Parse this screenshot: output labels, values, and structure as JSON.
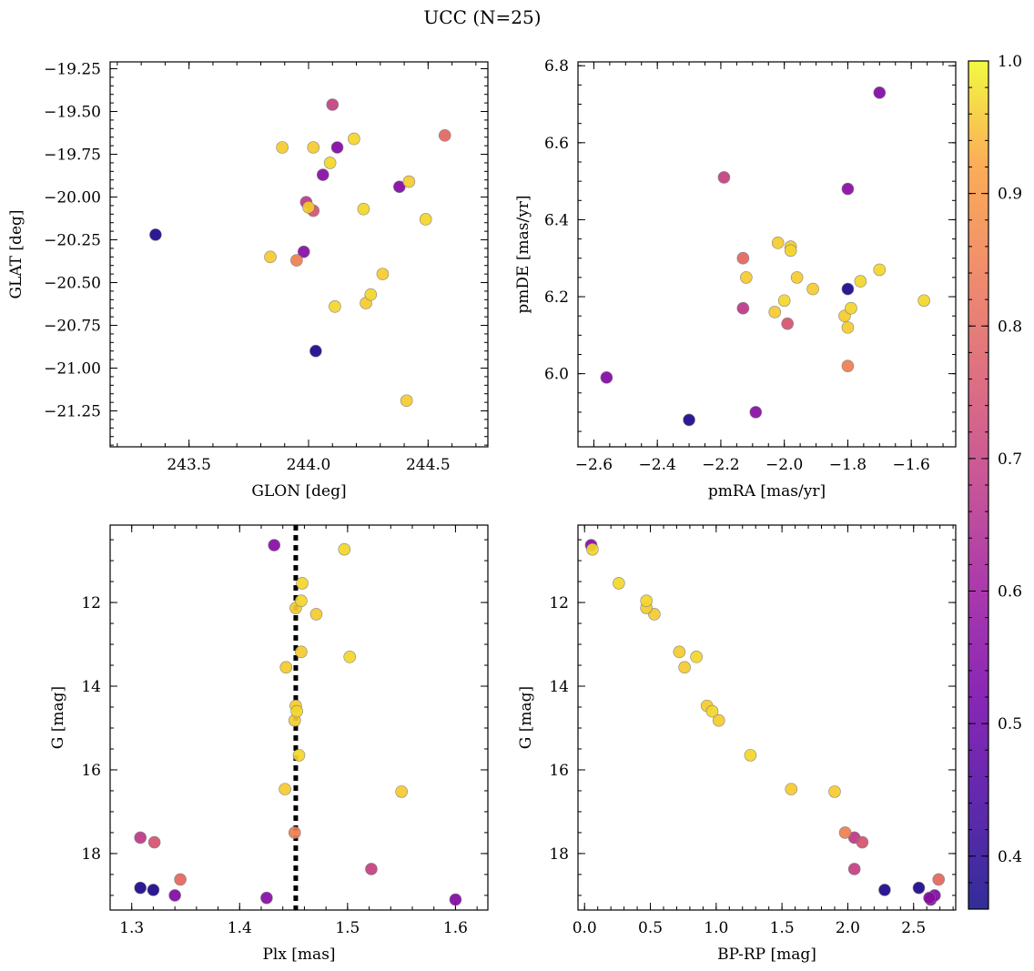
{
  "figure": {
    "title": "UCC (N=25)"
  },
  "colorbar": {
    "colormap": "plasma",
    "range": [
      0.36,
      1.0
    ],
    "ticks": [
      0.4,
      0.5,
      0.6,
      0.7,
      0.8,
      0.9,
      1.0
    ],
    "tick_labels": [
      "0.4",
      "0.5",
      "0.6",
      "0.7",
      "0.8",
      "0.9",
      "1.0"
    ]
  },
  "stars": [
    {
      "glon": 244.1,
      "glat": -19.46,
      "pmra": -2.19,
      "pmde": 6.51,
      "plx": 1.522,
      "g": 18.37,
      "bprp": 2.05,
      "prob": 0.7
    },
    {
      "glon": 244.57,
      "glat": -19.64,
      "pmra": -2.13,
      "pmde": 6.3,
      "plx": 1.345,
      "g": 18.62,
      "bprp": 2.69,
      "prob": 0.8
    },
    {
      "glon": 244.02,
      "glat": -19.71,
      "pmra": -2.12,
      "pmde": 6.25,
      "plx": 1.471,
      "g": 12.28,
      "bprp": 0.53,
      "prob": 0.96
    },
    {
      "glon": 243.89,
      "glat": -19.71,
      "pmra": -2.02,
      "pmde": 6.34,
      "plx": 1.452,
      "g": 12.13,
      "bprp": 0.47,
      "prob": 0.96
    },
    {
      "glon": 244.12,
      "glat": -19.71,
      "pmra": -1.7,
      "pmde": 6.73,
      "plx": 1.6,
      "g": 19.1,
      "bprp": 2.63,
      "prob": 0.55
    },
    {
      "glon": 244.19,
      "glat": -19.66,
      "pmra": -1.98,
      "pmde": 6.32,
      "plx": 1.453,
      "g": 14.6,
      "bprp": 0.97,
      "prob": 0.97
    },
    {
      "glon": 244.09,
      "glat": -19.8,
      "pmra": -2.0,
      "pmde": 6.19,
      "plx": 1.458,
      "g": 11.54,
      "bprp": 0.26,
      "prob": 0.97
    },
    {
      "glon": 244.06,
      "glat": -19.87,
      "pmra": -1.8,
      "pmde": 6.48,
      "plx": 1.425,
      "g": 19.06,
      "bprp": 2.62,
      "prob": 0.56
    },
    {
      "glon": 244.38,
      "glat": -19.94,
      "pmra": -2.56,
      "pmde": 5.99,
      "plx": 1.34,
      "g": 19.0,
      "bprp": 2.66,
      "prob": 0.55
    },
    {
      "glon": 244.42,
      "glat": -19.91,
      "pmra": -1.96,
      "pmde": 6.25,
      "plx": 1.457,
      "g": 13.18,
      "bprp": 0.72,
      "prob": 0.96
    },
    {
      "glon": 243.99,
      "glat": -20.03,
      "pmra": -2.13,
      "pmde": 6.17,
      "plx": 1.308,
      "g": 17.62,
      "bprp": 2.05,
      "prob": 0.68
    },
    {
      "glon": 244.02,
      "glat": -20.08,
      "pmra": -1.99,
      "pmde": 6.13,
      "plx": 1.321,
      "g": 17.73,
      "bprp": 2.11,
      "prob": 0.75
    },
    {
      "glon": 244.0,
      "glat": -20.06,
      "pmra": -2.03,
      "pmde": 6.16,
      "plx": 1.452,
      "g": 14.47,
      "bprp": 0.93,
      "prob": 0.96
    },
    {
      "glon": 244.23,
      "glat": -20.07,
      "pmra": -1.79,
      "pmde": 6.17,
      "plx": 1.455,
      "g": 15.65,
      "bprp": 1.26,
      "prob": 0.97
    },
    {
      "glon": 244.49,
      "glat": -20.13,
      "pmra": -1.76,
      "pmde": 6.24,
      "plx": 1.457,
      "g": 11.96,
      "bprp": 0.47,
      "prob": 0.97
    },
    {
      "glon": 243.36,
      "glat": -20.22,
      "pmra": -2.3,
      "pmde": 5.88,
      "plx": 1.308,
      "g": 18.82,
      "bprp": 2.54,
      "prob": 0.38
    },
    {
      "glon": 243.98,
      "glat": -20.32,
      "pmra": -2.09,
      "pmde": 5.9,
      "plx": 1.432,
      "g": 10.63,
      "bprp": 0.05,
      "prob": 0.56
    },
    {
      "glon": 243.84,
      "glat": -20.35,
      "pmra": -1.81,
      "pmde": 6.15,
      "plx": 1.442,
      "g": 16.46,
      "bprp": 1.57,
      "prob": 0.96
    },
    {
      "glon": 243.95,
      "glat": -20.37,
      "pmra": -1.8,
      "pmde": 6.02,
      "plx": 1.451,
      "g": 17.5,
      "bprp": 1.98,
      "prob": 0.85
    },
    {
      "glon": 244.31,
      "glat": -20.45,
      "pmra": -1.91,
      "pmde": 6.22,
      "plx": 1.55,
      "g": 16.52,
      "bprp": 1.9,
      "prob": 0.96
    },
    {
      "glon": 244.26,
      "glat": -20.57,
      "pmra": -1.7,
      "pmde": 6.27,
      "plx": 1.502,
      "g": 13.3,
      "bprp": 0.85,
      "prob": 0.97
    },
    {
      "glon": 244.11,
      "glat": -20.64,
      "pmra": -1.56,
      "pmde": 6.19,
      "plx": 1.497,
      "g": 10.73,
      "bprp": 0.06,
      "prob": 0.97
    },
    {
      "glon": 244.24,
      "glat": -20.62,
      "pmra": -1.8,
      "pmde": 6.12,
      "plx": 1.443,
      "g": 13.55,
      "bprp": 0.76,
      "prob": 0.96
    },
    {
      "glon": 244.03,
      "glat": -20.9,
      "pmra": -1.8,
      "pmde": 6.22,
      "plx": 1.32,
      "g": 18.87,
      "bprp": 2.28,
      "prob": 0.38
    },
    {
      "glon": 244.41,
      "glat": -21.19,
      "pmra": -1.98,
      "pmde": 6.33,
      "plx": 1.451,
      "g": 14.82,
      "bprp": 1.02,
      "prob": 0.96
    }
  ],
  "chart_data": [
    {
      "type": "scatter",
      "id": "sky",
      "xfield": "glon",
      "yfield": "glat",
      "xlabel": "GLON [deg]",
      "ylabel": "GLAT [deg]",
      "xlim": [
        243.17,
        244.75
      ],
      "ylim": [
        -21.46,
        -19.21
      ],
      "yinvert": false,
      "xticks": [
        243.5,
        244.0,
        244.5
      ],
      "xtick_labels": [
        "243.5",
        "244.0",
        "244.5"
      ],
      "xminor": 0.1,
      "yticks": [
        -21.25,
        -21.0,
        -20.75,
        -20.5,
        -20.25,
        -20.0,
        -19.75,
        -19.5,
        -19.25
      ],
      "ytick_labels": [
        "−21.25",
        "−21.00",
        "−20.75",
        "−20.50",
        "−20.25",
        "−20.00",
        "−19.75",
        "−19.50",
        "−19.25"
      ],
      "yminor": 0.05
    },
    {
      "type": "scatter",
      "id": "pm",
      "xfield": "pmra",
      "yfield": "pmde",
      "xlabel": "pmRA [mas/yr]",
      "ylabel": "pmDE [mas/yr]",
      "xlim": [
        -2.65,
        -1.46
      ],
      "ylim": [
        5.81,
        6.81
      ],
      "yinvert": false,
      "xticks": [
        -2.6,
        -2.4,
        -2.2,
        -2.0,
        -1.8,
        -1.6
      ],
      "xtick_labels": [
        "−2.6",
        "−2.4",
        "−2.2",
        "−2.0",
        "−1.8",
        "−1.6"
      ],
      "xminor": 0.05,
      "yticks": [
        6.0,
        6.2,
        6.4,
        6.6,
        6.8
      ],
      "ytick_labels": [
        "6.0",
        "6.2",
        "6.4",
        "6.6",
        "6.8"
      ],
      "yminor": 0.05
    },
    {
      "type": "scatter",
      "id": "plx",
      "xfield": "plx",
      "yfield": "g",
      "xlabel": "Plx [mas]",
      "ylabel": "G [mag]",
      "xlim": [
        1.28,
        1.63
      ],
      "ylim": [
        10.15,
        19.35
      ],
      "yinvert": true,
      "xticks": [
        1.3,
        1.4,
        1.5,
        1.6
      ],
      "xtick_labels": [
        "1.3",
        "1.4",
        "1.5",
        "1.6"
      ],
      "xminor": 0.02,
      "yticks": [
        12,
        14,
        16,
        18
      ],
      "ytick_labels": [
        "12",
        "14",
        "16",
        "18"
      ],
      "yminor": 0.5,
      "vline": 1.452
    },
    {
      "type": "scatter",
      "id": "cmd",
      "xfield": "bprp",
      "yfield": "g",
      "xlabel": "BP-RP [mag]",
      "ylabel": "G [mag]",
      "xlim": [
        -0.05,
        2.82
      ],
      "ylim": [
        10.15,
        19.35
      ],
      "yinvert": true,
      "xticks": [
        0.0,
        0.5,
        1.0,
        1.5,
        2.0,
        2.5
      ],
      "xtick_labels": [
        "0.0",
        "0.5",
        "1.0",
        "1.5",
        "2.0",
        "2.5"
      ],
      "xminor": 0.1,
      "yticks": [
        12,
        14,
        16,
        18
      ],
      "ytick_labels": [
        "12",
        "14",
        "16",
        "18"
      ],
      "yminor": 0.5
    }
  ]
}
